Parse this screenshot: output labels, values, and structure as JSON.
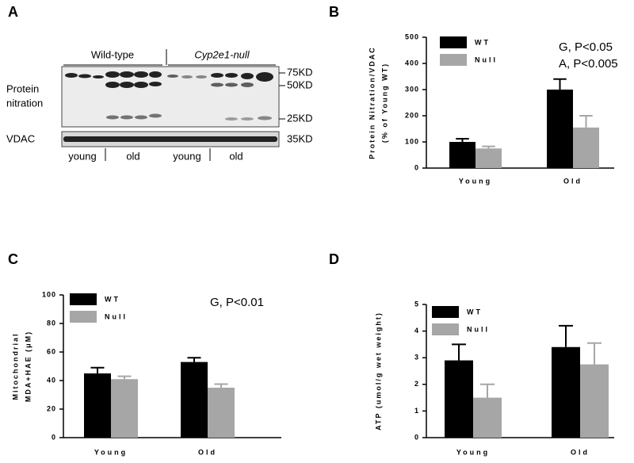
{
  "blot": {
    "panel": "A",
    "groups": [
      "Wild-type",
      "Cyp2e1-null"
    ],
    "row_labels": [
      "Protein",
      "nitration"
    ],
    "loading_label": "VDAC",
    "markers": [
      "75KD",
      "50KD",
      "25KD"
    ],
    "loading_marker": "35KD",
    "ages": [
      "young",
      "old",
      "young",
      "old"
    ]
  },
  "chart_data": [
    {
      "type": "bar",
      "panel": "B",
      "ylabel": [
        "Protein Nitration/VDAC",
        "(% of Young WT)"
      ],
      "categories": [
        "Young",
        "Old"
      ],
      "series": [
        {
          "name": "WT",
          "color": "#000000",
          "values": [
            100,
            300
          ],
          "errors": [
            12,
            40
          ]
        },
        {
          "name": "Null",
          "color": "#a6a6a6",
          "values": [
            75,
            155
          ],
          "errors": [
            8,
            45
          ]
        }
      ],
      "ylim": [
        0,
        500
      ],
      "yticks": [
        0,
        100,
        200,
        300,
        400,
        500
      ],
      "annotations": [
        "G, P<0.05",
        "A, P<0.005"
      ]
    },
    {
      "type": "bar",
      "panel": "C",
      "ylabel": [
        "Mitochondrial",
        "MDA+HAE (μM)"
      ],
      "categories": [
        "Young",
        "Old"
      ],
      "series": [
        {
          "name": "WT",
          "color": "#000000",
          "values": [
            45,
            53
          ],
          "errors": [
            4,
            3
          ]
        },
        {
          "name": "Null",
          "color": "#a6a6a6",
          "values": [
            41,
            35
          ],
          "errors": [
            2,
            2.5
          ]
        }
      ],
      "ylim": [
        0,
        100
      ],
      "yticks": [
        0,
        20,
        40,
        60,
        80,
        100
      ],
      "annotations": [
        "G, P<0.01"
      ]
    },
    {
      "type": "bar",
      "panel": "D",
      "ylabel": [
        "ATP (umol/g wet weight)"
      ],
      "categories": [
        "Young",
        "Old"
      ],
      "series": [
        {
          "name": "WT",
          "color": "#000000",
          "values": [
            2.9,
            3.4
          ],
          "errors": [
            0.6,
            0.8
          ]
        },
        {
          "name": "Null",
          "color": "#a6a6a6",
          "values": [
            1.5,
            2.75
          ],
          "errors": [
            0.5,
            0.8
          ]
        }
      ],
      "ylim": [
        0,
        5
      ],
      "yticks": [
        0,
        1,
        2,
        3,
        4,
        5
      ]
    }
  ]
}
